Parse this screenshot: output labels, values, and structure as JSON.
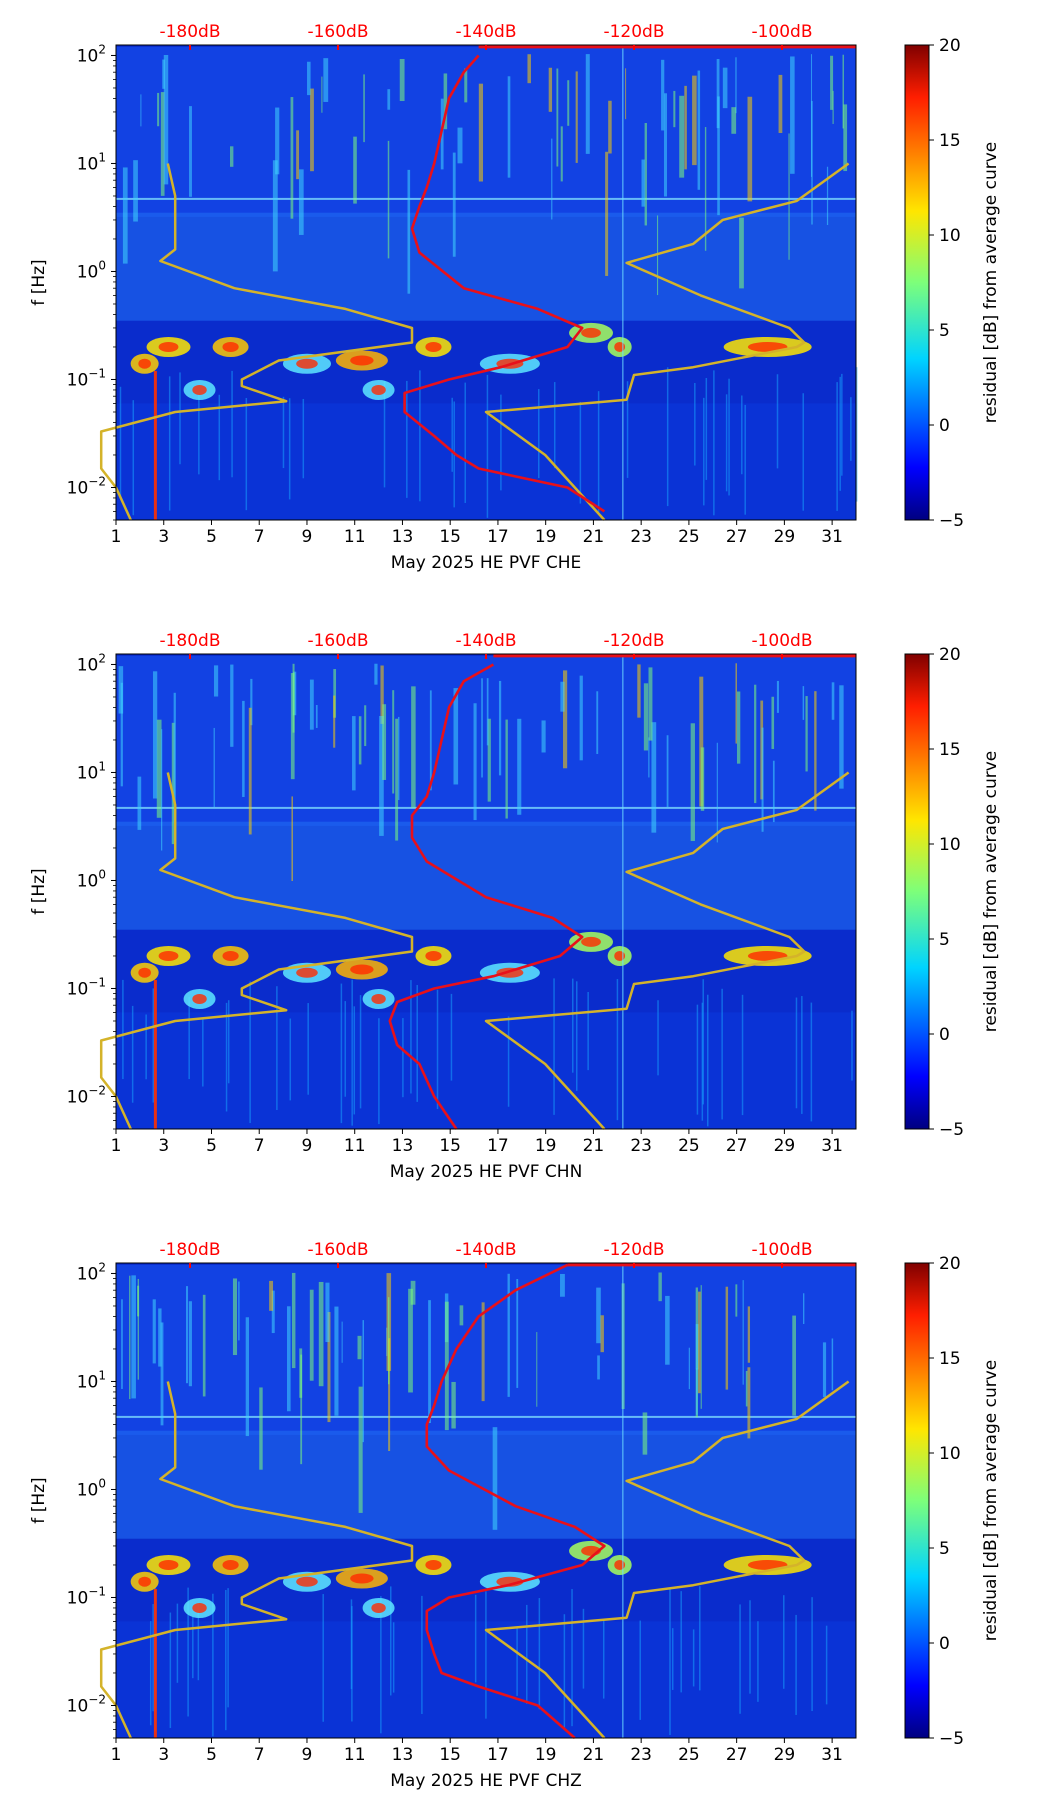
{
  "chart_data": [
    {
      "type": "heatmap",
      "channel": "CHE",
      "xlabel": "May 2025 HE PVF  CHE",
      "ylabel": "f [Hz]",
      "x_ticks": [
        1,
        3,
        5,
        7,
        9,
        11,
        13,
        15,
        17,
        19,
        21,
        23,
        25,
        27,
        29,
        31
      ],
      "xlim": [
        1,
        32
      ],
      "ylim": [
        0.005,
        125
      ],
      "y_ticks": [
        {
          "value": 0.01,
          "base": "10",
          "exp": "−2"
        },
        {
          "value": 0.1,
          "base": "10",
          "exp": "−1"
        },
        {
          "value": 1,
          "base": "10",
          "exp": "0"
        },
        {
          "value": 10,
          "base": "10",
          "exp": "1"
        },
        {
          "value": 100,
          "base": "10",
          "exp": "2"
        }
      ],
      "db_axis": {
        "labels": [
          "-180dB",
          "-160dB",
          "-140dB",
          "-120dB",
          "-100dB"
        ],
        "values": [
          -180,
          -160,
          -140,
          -120,
          -100
        ],
        "range": [
          -190,
          -90
        ],
        "color": "#ff0000"
      },
      "colorbar": {
        "label": "residual [dB] from average curve",
        "ticks": [
          -5,
          0,
          5,
          10,
          15,
          20
        ],
        "range": [
          -5,
          20
        ]
      },
      "red_curve": {
        "name": "average PSD",
        "points": [
          [
            -141,
            100
          ],
          [
            -143,
            70
          ],
          [
            -145,
            40
          ],
          [
            -146,
            20
          ],
          [
            -147,
            10
          ],
          [
            -148,
            6
          ],
          [
            -149,
            4
          ],
          [
            -150,
            2.5
          ],
          [
            -149,
            1.5
          ],
          [
            -143,
            0.7
          ],
          [
            -133,
            0.45
          ],
          [
            -127,
            0.3
          ],
          [
            -129,
            0.2
          ],
          [
            -138,
            0.13
          ],
          [
            -145,
            0.1
          ],
          [
            -151,
            0.075
          ],
          [
            -151,
            0.05
          ],
          [
            -147,
            0.03
          ],
          [
            -144,
            0.02
          ],
          [
            -141,
            0.015
          ],
          [
            -129,
            0.01
          ],
          [
            -124,
            0.006
          ]
        ]
      },
      "yellow_curves": [
        {
          "name": "NLNM",
          "points": [
            [
              -183,
              10
            ],
            [
              -182,
              5
            ],
            [
              -182,
              3
            ],
            [
              -182,
              1.6
            ],
            [
              -184,
              1.25
            ],
            [
              -174,
              0.7
            ],
            [
              -159,
              0.45
            ],
            [
              -150,
              0.3
            ],
            [
              -150,
              0.22
            ],
            [
              -168,
              0.15
            ],
            [
              -173,
              0.1
            ],
            [
              -173,
              0.087
            ],
            [
              -167,
              0.063
            ],
            [
              -182,
              0.05
            ],
            [
              -192,
              0.033
            ],
            [
              -192,
              0.022
            ],
            [
              -192,
              0.015
            ],
            [
              -190,
              0.01
            ],
            [
              -188,
              0.005
            ]
          ]
        },
        {
          "name": "NHNM",
          "points": [
            [
              -91,
              10
            ],
            [
              -98,
              4.5
            ],
            [
              -108,
              3
            ],
            [
              -112,
              1.8
            ],
            [
              -121,
              1.2
            ],
            [
              -111,
              0.6
            ],
            [
              -99,
              0.3
            ],
            [
              -97,
              0.22
            ],
            [
              -98,
              0.2
            ],
            [
              -112,
              0.13
            ],
            [
              -120,
              0.11
            ],
            [
              -121,
              0.065
            ],
            [
              -140,
              0.05
            ],
            [
              -132,
              0.02
            ],
            [
              -124,
              0.005
            ]
          ]
        }
      ]
    },
    {
      "type": "heatmap",
      "channel": "CHN",
      "xlabel": "May 2025 HE PVF  CHN",
      "ylabel": "f [Hz]",
      "x_ticks": [
        1,
        3,
        5,
        7,
        9,
        11,
        13,
        15,
        17,
        19,
        21,
        23,
        25,
        27,
        29,
        31
      ],
      "xlim": [
        1,
        32
      ],
      "ylim": [
        0.005,
        125
      ],
      "y_ticks": [
        {
          "value": 0.01,
          "base": "10",
          "exp": "−2"
        },
        {
          "value": 0.1,
          "base": "10",
          "exp": "−1"
        },
        {
          "value": 1,
          "base": "10",
          "exp": "0"
        },
        {
          "value": 10,
          "base": "10",
          "exp": "1"
        },
        {
          "value": 100,
          "base": "10",
          "exp": "2"
        }
      ],
      "db_axis": {
        "labels": [
          "-180dB",
          "-160dB",
          "-140dB",
          "-120dB",
          "-100dB"
        ],
        "values": [
          -180,
          -160,
          -140,
          -120,
          -100
        ],
        "range": [
          -190,
          -90
        ],
        "color": "#ff0000"
      },
      "colorbar": {
        "label": "residual [dB] from average curve",
        "ticks": [
          -5,
          0,
          5,
          10,
          15,
          20
        ],
        "range": [
          -5,
          20
        ]
      },
      "red_curve": {
        "name": "average PSD",
        "points": [
          [
            -139,
            100
          ],
          [
            -143,
            70
          ],
          [
            -145,
            40
          ],
          [
            -146,
            20
          ],
          [
            -147,
            10
          ],
          [
            -148,
            6
          ],
          [
            -150,
            4
          ],
          [
            -150,
            2.5
          ],
          [
            -148,
            1.5
          ],
          [
            -140,
            0.7
          ],
          [
            -131,
            0.45
          ],
          [
            -127,
            0.3
          ],
          [
            -130,
            0.2
          ],
          [
            -139,
            0.13
          ],
          [
            -147,
            0.1
          ],
          [
            -152,
            0.075
          ],
          [
            -153,
            0.05
          ],
          [
            -152,
            0.03
          ],
          [
            -149,
            0.02
          ],
          [
            -147,
            0.01
          ],
          [
            -144,
            0.005
          ]
        ]
      },
      "yellow_curves": [
        {
          "name": "NLNM",
          "points": [
            [
              -183,
              10
            ],
            [
              -182,
              5
            ],
            [
              -182,
              3
            ],
            [
              -182,
              1.6
            ],
            [
              -184,
              1.25
            ],
            [
              -174,
              0.7
            ],
            [
              -159,
              0.45
            ],
            [
              -150,
              0.3
            ],
            [
              -150,
              0.22
            ],
            [
              -168,
              0.15
            ],
            [
              -173,
              0.1
            ],
            [
              -173,
              0.087
            ],
            [
              -167,
              0.063
            ],
            [
              -182,
              0.05
            ],
            [
              -192,
              0.033
            ],
            [
              -192,
              0.022
            ],
            [
              -192,
              0.015
            ],
            [
              -190,
              0.01
            ],
            [
              -188,
              0.005
            ]
          ]
        },
        {
          "name": "NHNM",
          "points": [
            [
              -91,
              10
            ],
            [
              -98,
              4.5
            ],
            [
              -108,
              3
            ],
            [
              -112,
              1.8
            ],
            [
              -121,
              1.2
            ],
            [
              -111,
              0.6
            ],
            [
              -99,
              0.3
            ],
            [
              -97,
              0.22
            ],
            [
              -98,
              0.2
            ],
            [
              -112,
              0.13
            ],
            [
              -120,
              0.11
            ],
            [
              -121,
              0.065
            ],
            [
              -140,
              0.05
            ],
            [
              -132,
              0.02
            ],
            [
              -124,
              0.005
            ]
          ]
        }
      ]
    },
    {
      "type": "heatmap",
      "channel": "CHZ",
      "xlabel": "May 2025 HE PVF  CHZ",
      "ylabel": "f [Hz]",
      "x_ticks": [
        1,
        3,
        5,
        7,
        9,
        11,
        13,
        15,
        17,
        19,
        21,
        23,
        25,
        27,
        29,
        31
      ],
      "xlim": [
        1,
        32
      ],
      "ylim": [
        0.005,
        125
      ],
      "y_ticks": [
        {
          "value": 0.01,
          "base": "10",
          "exp": "−2"
        },
        {
          "value": 0.1,
          "base": "10",
          "exp": "−1"
        },
        {
          "value": 1,
          "base": "10",
          "exp": "0"
        },
        {
          "value": 10,
          "base": "10",
          "exp": "1"
        },
        {
          "value": 100,
          "base": "10",
          "exp": "2"
        }
      ],
      "db_axis": {
        "labels": [
          "-180dB",
          "-160dB",
          "-140dB",
          "-120dB",
          "-100dB"
        ],
        "values": [
          -180,
          -160,
          -140,
          -120,
          -100
        ],
        "range": [
          -190,
          -90
        ],
        "color": "#ff0000"
      },
      "colorbar": {
        "label": "residual [dB] from average curve",
        "ticks": [
          -5,
          0,
          5,
          10,
          15,
          20
        ],
        "range": [
          -5,
          20
        ]
      },
      "red_curve": {
        "name": "average PSD",
        "points": [
          [
            -129,
            120
          ],
          [
            -136,
            70
          ],
          [
            -141,
            40
          ],
          [
            -144,
            20
          ],
          [
            -146,
            10
          ],
          [
            -147,
            6
          ],
          [
            -148,
            4
          ],
          [
            -148,
            2.5
          ],
          [
            -145,
            1.5
          ],
          [
            -136,
            0.7
          ],
          [
            -128,
            0.45
          ],
          [
            -124,
            0.3
          ],
          [
            -127,
            0.2
          ],
          [
            -137,
            0.13
          ],
          [
            -145,
            0.1
          ],
          [
            -148,
            0.075
          ],
          [
            -148,
            0.05
          ],
          [
            -147,
            0.03
          ],
          [
            -146,
            0.02
          ],
          [
            -141,
            0.015
          ],
          [
            -133,
            0.01
          ],
          [
            -128,
            0.005
          ]
        ]
      },
      "yellow_curves": [
        {
          "name": "NLNM",
          "points": [
            [
              -183,
              10
            ],
            [
              -182,
              5
            ],
            [
              -182,
              3
            ],
            [
              -182,
              1.6
            ],
            [
              -184,
              1.25
            ],
            [
              -174,
              0.7
            ],
            [
              -159,
              0.45
            ],
            [
              -150,
              0.3
            ],
            [
              -150,
              0.22
            ],
            [
              -168,
              0.15
            ],
            [
              -173,
              0.1
            ],
            [
              -173,
              0.087
            ],
            [
              -167,
              0.063
            ],
            [
              -182,
              0.05
            ],
            [
              -192,
              0.033
            ],
            [
              -192,
              0.022
            ],
            [
              -192,
              0.015
            ],
            [
              -190,
              0.01
            ],
            [
              -188,
              0.005
            ]
          ]
        },
        {
          "name": "NHNM",
          "points": [
            [
              -91,
              10
            ],
            [
              -98,
              4.5
            ],
            [
              -108,
              3
            ],
            [
              -112,
              1.8
            ],
            [
              -121,
              1.2
            ],
            [
              -111,
              0.6
            ],
            [
              -99,
              0.3
            ],
            [
              -97,
              0.22
            ],
            [
              -98,
              0.2
            ],
            [
              -112,
              0.13
            ],
            [
              -120,
              0.11
            ],
            [
              -121,
              0.065
            ],
            [
              -140,
              0.05
            ],
            [
              -132,
              0.02
            ],
            [
              -124,
              0.005
            ]
          ]
        }
      ]
    }
  ]
}
